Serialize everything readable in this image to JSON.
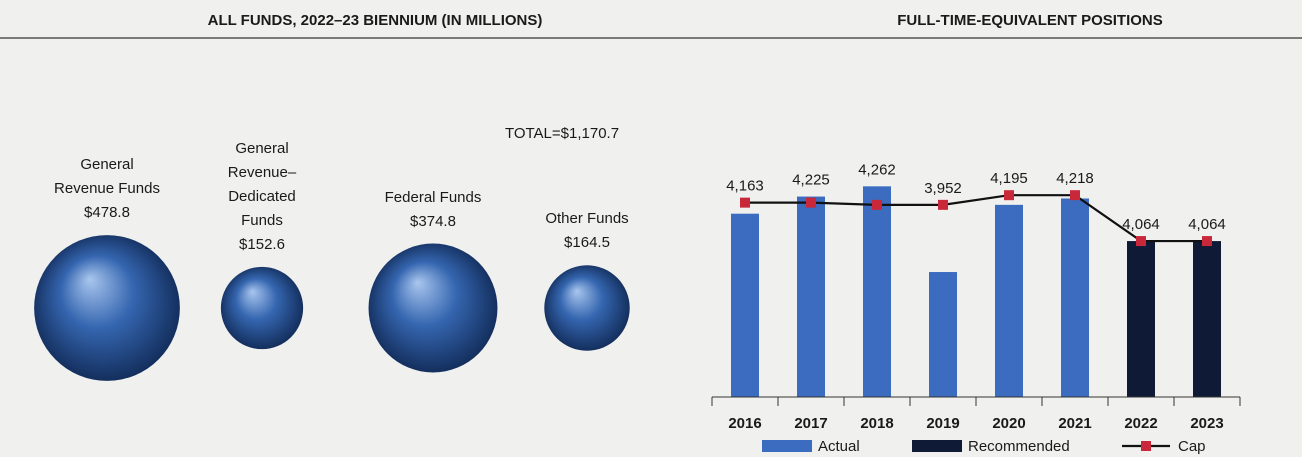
{
  "chart_data": [
    {
      "type": "bubble",
      "title": "ALL FUNDS, 2022–23 BIENNIUM (IN MILLIONS)",
      "annotation": "TOTAL=$1,170.7",
      "categories": [
        "General Revenue Funds",
        "General Revenue–Dedicated Funds",
        "Federal Funds",
        "Other Funds"
      ],
      "values": [
        478.8,
        152.6,
        374.8,
        164.5
      ],
      "value_labels": [
        "$478.8",
        "$152.6",
        "$374.8",
        "$164.5"
      ],
      "color": "#3566b0"
    },
    {
      "type": "bar-line",
      "title": "FULL-TIME-EQUIVALENT POSITIONS",
      "categories": [
        "2016",
        "2017",
        "2018",
        "2019",
        "2020",
        "2021",
        "2022",
        "2023"
      ],
      "ylim": [
        3500,
        4350
      ],
      "legend": "bottom",
      "series": [
        {
          "name": "Actual",
          "type": "bar",
          "color": "#3b6cc0",
          "values": [
            4163,
            4225,
            4262,
            3952,
            4195,
            4218,
            null,
            null
          ],
          "value_labels": [
            "4,163",
            "4,225",
            "4,262",
            "3,952",
            "4,195",
            "4,218",
            null,
            null
          ]
        },
        {
          "name": "Recommended",
          "type": "bar",
          "color": "#0e1a36",
          "values": [
            null,
            null,
            null,
            null,
            null,
            null,
            4064,
            4064
          ],
          "value_labels": [
            null,
            null,
            null,
            null,
            null,
            null,
            "4,064",
            "4,064"
          ]
        },
        {
          "name": "Cap",
          "type": "line",
          "color": "#111111",
          "marker_color": "#c8283a",
          "values": [
            4203,
            4203,
            4195,
            4195,
            4230,
            4230,
            4064,
            4064
          ]
        }
      ]
    }
  ]
}
